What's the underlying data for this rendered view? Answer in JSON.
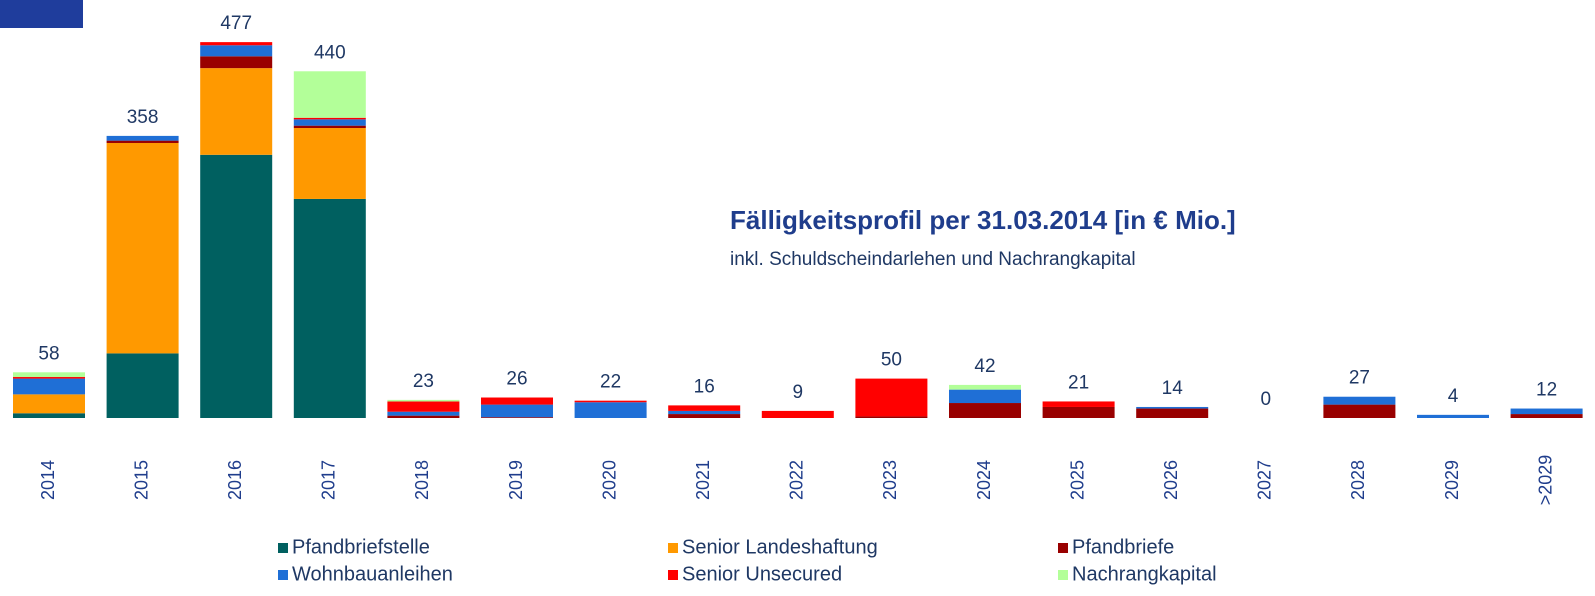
{
  "chart_data": {
    "type": "stacked_bar",
    "title": "Fälligkeitsprofil per 31.03.2014 [in € Mio.]",
    "subtitle": "inkl. Schuldscheindarlehen und Nachrangkapital",
    "categories": [
      "2014",
      "2015",
      "2016",
      "2017",
      "2018",
      "2019",
      "2020",
      "2021",
      "2022",
      "2023",
      "2024",
      "2025",
      "2026",
      "2027",
      "2028",
      "2029",
      ">2029"
    ],
    "totals": [
      58,
      358,
      477,
      440,
      23,
      26,
      22,
      16,
      9,
      50,
      42,
      21,
      14,
      0,
      27,
      4,
      12
    ],
    "series": [
      {
        "name": "Pfandbriefstelle",
        "color": "#006060",
        "values": [
          6,
          82,
          334,
          278,
          0,
          0,
          0,
          0,
          0,
          0,
          0,
          0,
          0,
          0,
          0,
          0,
          0
        ]
      },
      {
        "name": "Senior Landeshaftung",
        "color": "#ff9900",
        "values": [
          24,
          267,
          110,
          90,
          0,
          0,
          0,
          0,
          0,
          0,
          0,
          0,
          0,
          0,
          0,
          0,
          0
        ]
      },
      {
        "name": "Pfandbriefe",
        "color": "#990000",
        "values": [
          0,
          3,
          15,
          3,
          3,
          1,
          0,
          5,
          0,
          2,
          19,
          14,
          12,
          0,
          17,
          0,
          5
        ]
      },
      {
        "name": "Wohnbauanleihen",
        "color": "#1f6fd6",
        "values": [
          20,
          6,
          14,
          8,
          5,
          16,
          20,
          4,
          0,
          0,
          17,
          0,
          2,
          0,
          10,
          4,
          7
        ]
      },
      {
        "name": "Senior Unsecured",
        "color": "#ff0000",
        "values": [
          2,
          0,
          4,
          2,
          13,
          9,
          2,
          7,
          9,
          48,
          0,
          7,
          0,
          0,
          0,
          0,
          0
        ]
      },
      {
        "name": "Nachrangkapital",
        "color": "#b3ff99",
        "values": [
          6,
          0,
          0,
          59,
          2,
          0,
          0,
          0,
          0,
          0,
          6,
          0,
          0,
          0,
          0,
          0,
          0
        ]
      }
    ]
  }
}
